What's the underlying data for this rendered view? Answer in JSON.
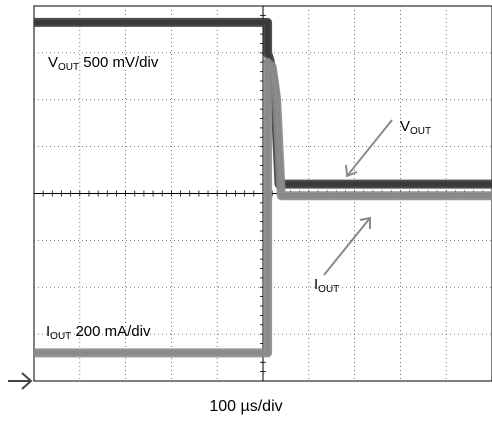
{
  "chart_data": {
    "type": "line",
    "title": "",
    "timebase": "100 µs/div",
    "divisions": {
      "x": 10,
      "y": 8
    },
    "grid": true,
    "series": [
      {
        "name": "VOUT",
        "scale": "500 mV/div",
        "color": "#3a3a3a",
        "x_div": [
          0,
          5.1,
          5.1,
          5.15,
          5.25,
          5.35,
          10
        ],
        "y_div": [
          7.65,
          7.65,
          7.0,
          6.85,
          6.3,
          4.2,
          4.2
        ]
      },
      {
        "name": "IOUT",
        "scale": "200 mA/div",
        "color": "#8a8a8a",
        "x_div": [
          0,
          5.1,
          5.1,
          5.2,
          5.3,
          5.4,
          10
        ],
        "y_div": [
          0.6,
          0.6,
          6.8,
          6.7,
          6.0,
          3.95,
          3.95
        ]
      }
    ],
    "annotations": {
      "vout_scale": {
        "main": "V",
        "sub": "OUT",
        "rest": " 500 mV/div"
      },
      "iout_scale": {
        "main": "I",
        "sub": "OUT",
        "rest": " 200 mA/div"
      },
      "vout_tag": {
        "main": "V",
        "sub": "OUT"
      },
      "iout_tag": {
        "main": "I",
        "sub": "OUT"
      }
    }
  }
}
